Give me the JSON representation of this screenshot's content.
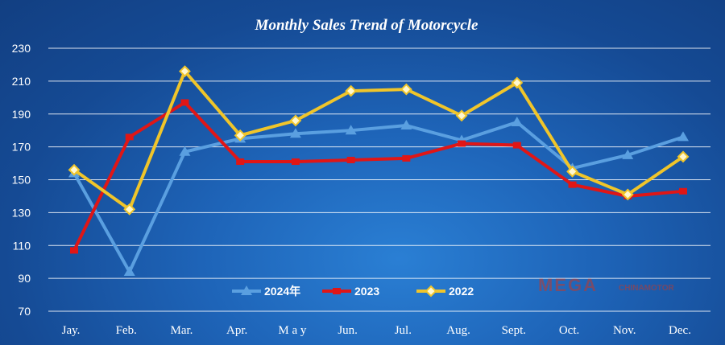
{
  "chart_data": {
    "type": "line",
    "title": "Monthly Sales Trend of Motorcycle",
    "categories": [
      "Jay.",
      "Feb.",
      "Mar.",
      "Apr.",
      "M a y",
      "Jun.",
      "Jul.",
      "Aug.",
      "Sept.",
      "Oct.",
      "Nov.",
      "Dec."
    ],
    "ylim": [
      70,
      230
    ],
    "yticks": [
      70,
      90,
      110,
      130,
      150,
      170,
      190,
      210,
      230
    ],
    "grid": true,
    "legend_position": "bottom-center",
    "series": [
      {
        "name": "2024年",
        "color": "#5a9fe0",
        "marker": "triangle",
        "values": [
          154,
          94,
          167,
          175,
          178,
          180,
          183,
          174,
          185,
          157,
          165,
          176
        ]
      },
      {
        "name": "2023",
        "color": "#e01616",
        "marker": "dash",
        "values": [
          107,
          176,
          197,
          161,
          161,
          162,
          163,
          172,
          171,
          147,
          140,
          143
        ]
      },
      {
        "name": "2022",
        "color": "#f0c52a",
        "marker": "diamond",
        "values": [
          156,
          132,
          216,
          177,
          186,
          204,
          205,
          189,
          209,
          155,
          141,
          164
        ]
      }
    ]
  },
  "watermark": {
    "main": "MEGA",
    "sub": "CHINAMOTOR"
  }
}
